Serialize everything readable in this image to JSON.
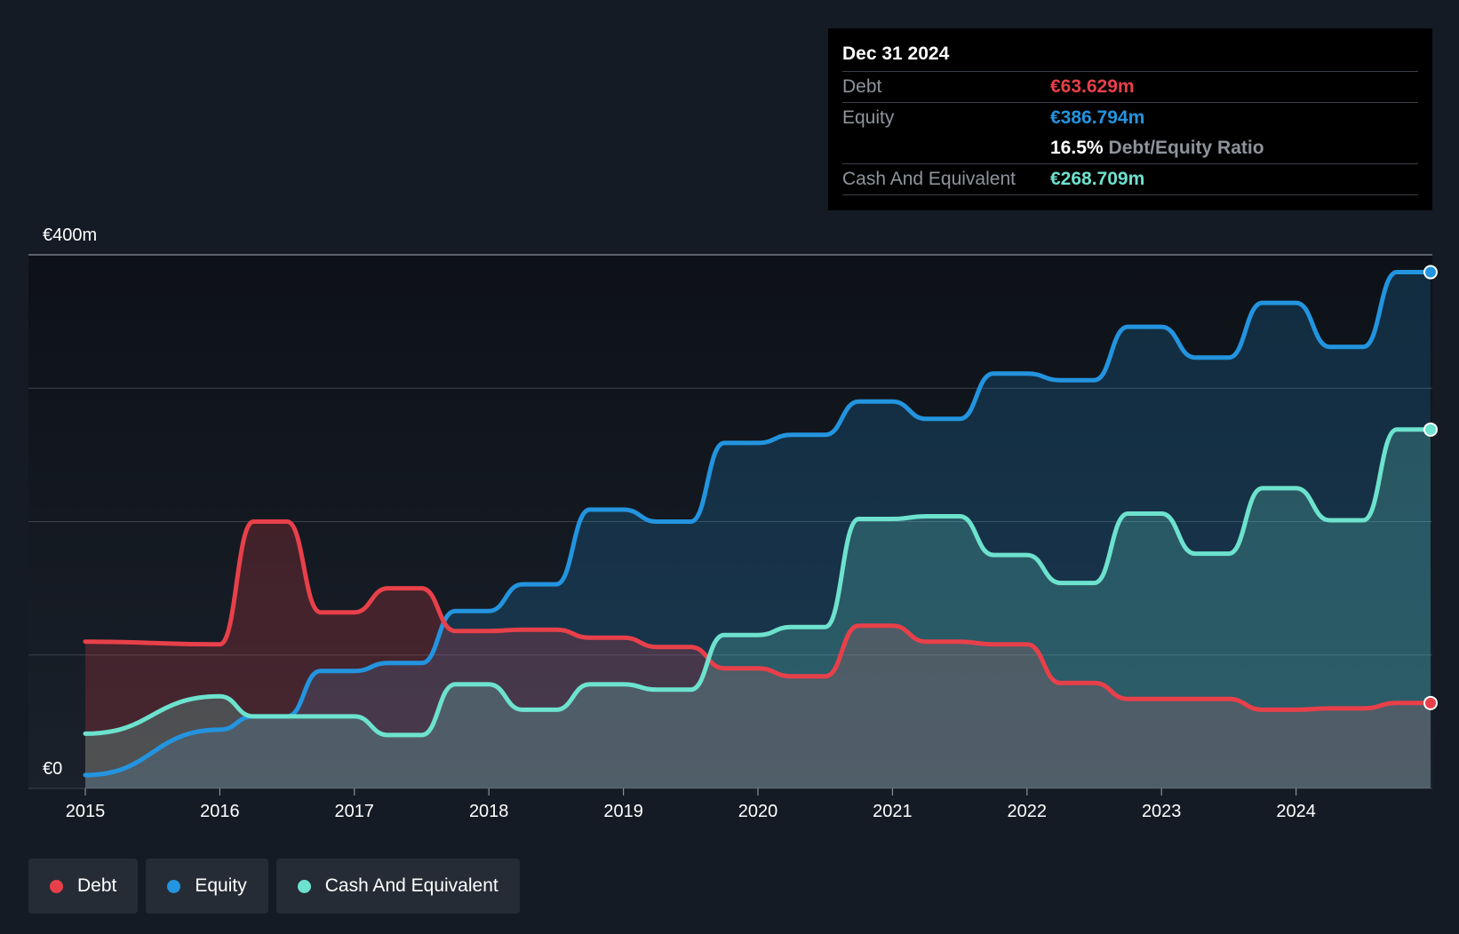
{
  "chart_data": {
    "type": "area",
    "title": "",
    "xlabel": "",
    "ylabel": "",
    "y_axis_labels": [
      "€0",
      "€400m"
    ],
    "ylim": [
      0,
      400
    ],
    "xlim": [
      2015,
      2025
    ],
    "x_ticks": [
      "2015",
      "2016",
      "2017",
      "2018",
      "2019",
      "2020",
      "2021",
      "2022",
      "2023",
      "2024"
    ],
    "grid": true,
    "legend_position": "bottom-left",
    "series": [
      {
        "name": "Debt",
        "color": "#e8404a",
        "points": [
          [
            2015.0,
            110
          ],
          [
            2016.0,
            108
          ],
          [
            2016.25,
            200
          ],
          [
            2016.5,
            200
          ],
          [
            2016.75,
            132
          ],
          [
            2017.0,
            132
          ],
          [
            2017.25,
            150
          ],
          [
            2017.5,
            150
          ],
          [
            2017.75,
            118
          ],
          [
            2018.0,
            118
          ],
          [
            2018.25,
            119
          ],
          [
            2018.5,
            119
          ],
          [
            2018.75,
            113
          ],
          [
            2019.0,
            113
          ],
          [
            2019.25,
            106
          ],
          [
            2019.5,
            106
          ],
          [
            2019.75,
            90
          ],
          [
            2020.0,
            90
          ],
          [
            2020.25,
            84
          ],
          [
            2020.5,
            84
          ],
          [
            2020.75,
            122
          ],
          [
            2021.0,
            122
          ],
          [
            2021.25,
            110
          ],
          [
            2021.5,
            110
          ],
          [
            2021.75,
            108
          ],
          [
            2022.0,
            108
          ],
          [
            2022.25,
            79
          ],
          [
            2022.5,
            79
          ],
          [
            2022.75,
            67
          ],
          [
            2023.0,
            67
          ],
          [
            2023.25,
            67
          ],
          [
            2023.5,
            67
          ],
          [
            2023.75,
            59
          ],
          [
            2024.0,
            59
          ],
          [
            2024.25,
            60
          ],
          [
            2024.5,
            60
          ],
          [
            2024.75,
            64
          ],
          [
            2025.0,
            64
          ]
        ]
      },
      {
        "name": "Equity",
        "color": "#2394df",
        "points": [
          [
            2015.0,
            10
          ],
          [
            2016.0,
            44
          ],
          [
            2016.25,
            54
          ],
          [
            2016.5,
            54
          ],
          [
            2016.75,
            88
          ],
          [
            2017.0,
            88
          ],
          [
            2017.25,
            94
          ],
          [
            2017.5,
            94
          ],
          [
            2017.75,
            133
          ],
          [
            2018.0,
            133
          ],
          [
            2018.25,
            153
          ],
          [
            2018.5,
            153
          ],
          [
            2018.75,
            209
          ],
          [
            2019.0,
            209
          ],
          [
            2019.25,
            200
          ],
          [
            2019.5,
            200
          ],
          [
            2019.75,
            259
          ],
          [
            2020.0,
            259
          ],
          [
            2020.25,
            265
          ],
          [
            2020.5,
            265
          ],
          [
            2020.75,
            290
          ],
          [
            2021.0,
            290
          ],
          [
            2021.25,
            277
          ],
          [
            2021.5,
            277
          ],
          [
            2021.75,
            311
          ],
          [
            2022.0,
            311
          ],
          [
            2022.25,
            306
          ],
          [
            2022.5,
            306
          ],
          [
            2022.75,
            346
          ],
          [
            2023.0,
            346
          ],
          [
            2023.25,
            323
          ],
          [
            2023.5,
            323
          ],
          [
            2023.75,
            364
          ],
          [
            2024.0,
            364
          ],
          [
            2024.25,
            331
          ],
          [
            2024.5,
            331
          ],
          [
            2024.75,
            387
          ],
          [
            2025.0,
            387
          ]
        ]
      },
      {
        "name": "Cash And Equivalent",
        "color": "#6de2ce",
        "points": [
          [
            2015.0,
            41
          ],
          [
            2016.0,
            69
          ],
          [
            2016.25,
            54
          ],
          [
            2016.5,
            54
          ],
          [
            2016.75,
            54
          ],
          [
            2017.0,
            54
          ],
          [
            2017.25,
            40
          ],
          [
            2017.5,
            40
          ],
          [
            2017.75,
            78
          ],
          [
            2018.0,
            78
          ],
          [
            2018.25,
            59
          ],
          [
            2018.5,
            59
          ],
          [
            2018.75,
            78
          ],
          [
            2019.0,
            78
          ],
          [
            2019.25,
            74
          ],
          [
            2019.5,
            74
          ],
          [
            2019.75,
            115
          ],
          [
            2020.0,
            115
          ],
          [
            2020.25,
            121
          ],
          [
            2020.5,
            121
          ],
          [
            2020.75,
            202
          ],
          [
            2021.0,
            202
          ],
          [
            2021.25,
            204
          ],
          [
            2021.5,
            204
          ],
          [
            2021.75,
            175
          ],
          [
            2022.0,
            175
          ],
          [
            2022.25,
            154
          ],
          [
            2022.5,
            154
          ],
          [
            2022.75,
            206
          ],
          [
            2023.0,
            206
          ],
          [
            2023.25,
            176
          ],
          [
            2023.5,
            176
          ],
          [
            2023.75,
            225
          ],
          [
            2024.0,
            225
          ],
          [
            2024.25,
            201
          ],
          [
            2024.5,
            201
          ],
          [
            2024.75,
            269
          ],
          [
            2025.0,
            269
          ]
        ]
      }
    ]
  },
  "tooltip": {
    "date": "Dec 31 2024",
    "debt_label": "Debt",
    "debt_value": "€63.629m",
    "equity_label": "Equity",
    "equity_value": "€386.794m",
    "ratio_value": "16.5%",
    "ratio_label": "Debt/Equity Ratio",
    "cash_label": "Cash And Equivalent",
    "cash_value": "€268.709m"
  },
  "legend": {
    "items": [
      {
        "label": "Debt",
        "color": "#e8404a"
      },
      {
        "label": "Equity",
        "color": "#2394df"
      },
      {
        "label": "Cash And Equivalent",
        "color": "#6de2ce"
      }
    ]
  }
}
